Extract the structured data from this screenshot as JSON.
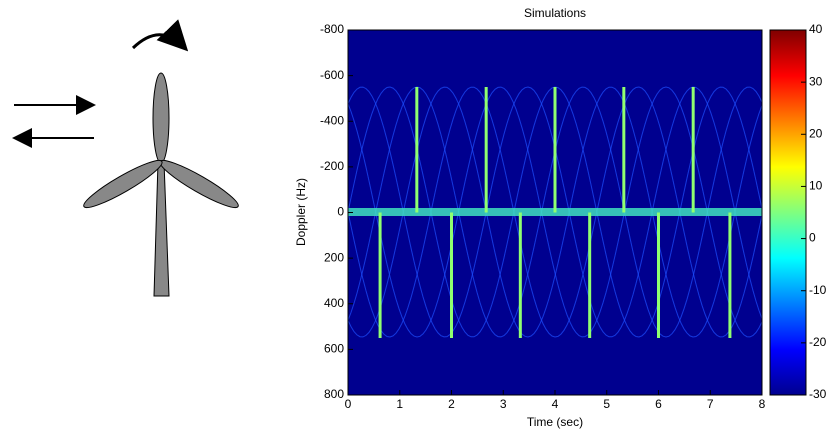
{
  "chart_data": {
    "type": "spectrogram",
    "title": "Simulations",
    "xlabel": "Time (sec)",
    "ylabel": "Doppler (Hz)",
    "xlim": [
      0,
      8
    ],
    "xticks": [
      0,
      1,
      2,
      3,
      4,
      5,
      6,
      7,
      8
    ],
    "ylim": [
      800,
      -800
    ],
    "yticks": [
      -800,
      -600,
      -400,
      -200,
      0,
      200,
      400,
      600,
      800
    ],
    "clim": [
      -30,
      40
    ],
    "cticks": [
      40,
      30,
      20,
      10,
      0,
      -10,
      -20,
      -30
    ],
    "background": "#00008f",
    "flash_color": "#90ff70",
    "flashes": {
      "x": [
        0.62,
        1.33,
        2.0,
        2.67,
        3.33,
        4.0,
        4.67,
        5.33,
        6.0,
        6.67,
        7.38
      ],
      "y": [
        550,
        -550,
        550,
        -550,
        550,
        -550,
        550,
        -550,
        550,
        -550,
        550
      ]
    }
  }
}
